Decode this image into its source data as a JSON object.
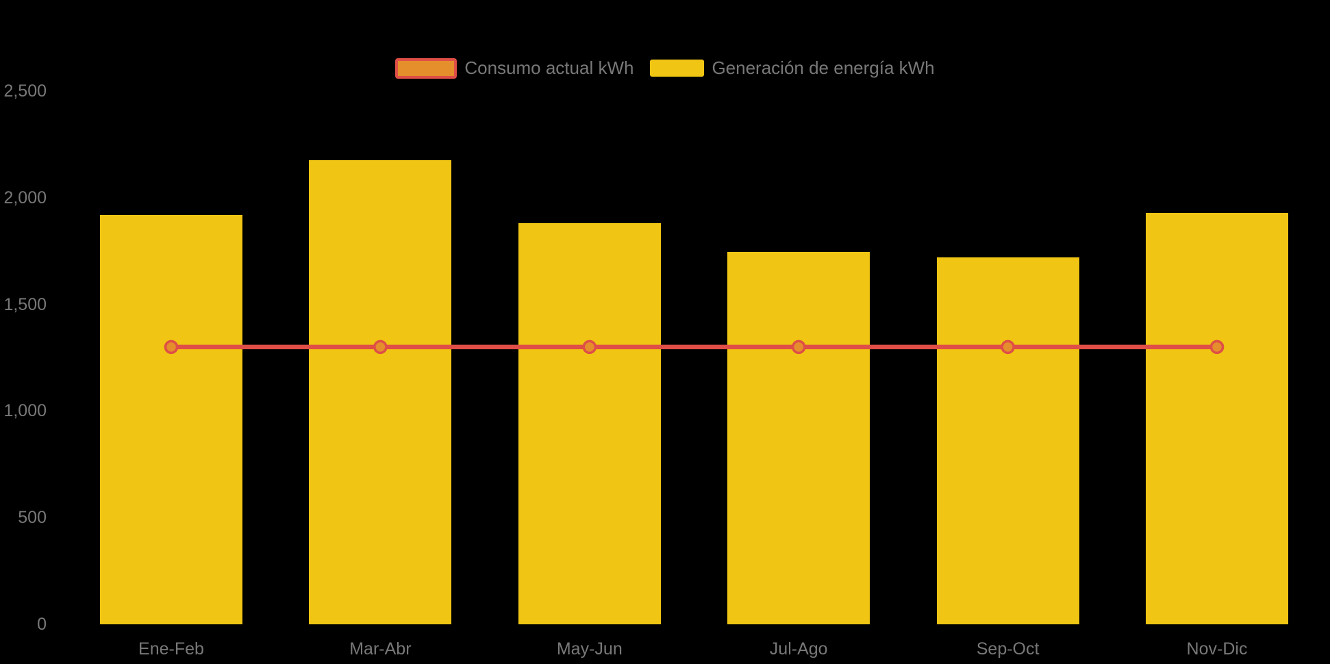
{
  "colors": {
    "background": "#000000",
    "bar_yellow": "#F0C513",
    "line_red": "#DF4E47",
    "marker_orange": "#E58E2C",
    "axis_text_gray": "#78787A"
  },
  "legend": {
    "items": [
      {
        "label": "Consumo actual kWh",
        "type": "line",
        "swatch_fill": "#E58E2C",
        "swatch_border": "#DF4E47"
      },
      {
        "label": "Generación de energía kWh",
        "type": "bar",
        "swatch_fill": "#F0C513"
      }
    ]
  },
  "chart_data": {
    "type": "bar",
    "subtype": "bar-with-line-overlay",
    "title": "",
    "xlabel": "",
    "ylabel": "",
    "categories": [
      "Ene-Feb",
      "Mar-Abr",
      "May-Jun",
      "Jul-Ago",
      "Sep-Oct",
      "Nov-Dic"
    ],
    "series": [
      {
        "name": "Consumo actual kWh",
        "type": "line",
        "color": "#DF4E47",
        "marker_fill": "#E58E2C",
        "values": [
          1300,
          1300,
          1300,
          1300,
          1300,
          1300
        ]
      },
      {
        "name": "Generación de energía kWh",
        "type": "bar",
        "color": "#F0C513",
        "values": [
          1920,
          2175,
          1880,
          1745,
          1720,
          1930
        ]
      }
    ],
    "ylim": [
      0,
      2500
    ],
    "yticks": [
      {
        "value": 0,
        "label": "0"
      },
      {
        "value": 500,
        "label": "500"
      },
      {
        "value": 1000,
        "label": "1,000"
      },
      {
        "value": 1500,
        "label": "1,500"
      },
      {
        "value": 2000,
        "label": "2,000"
      },
      {
        "value": 2500,
        "label": "2,500"
      }
    ],
    "grid": false,
    "legend_position": "top-center",
    "background": "#000000"
  }
}
